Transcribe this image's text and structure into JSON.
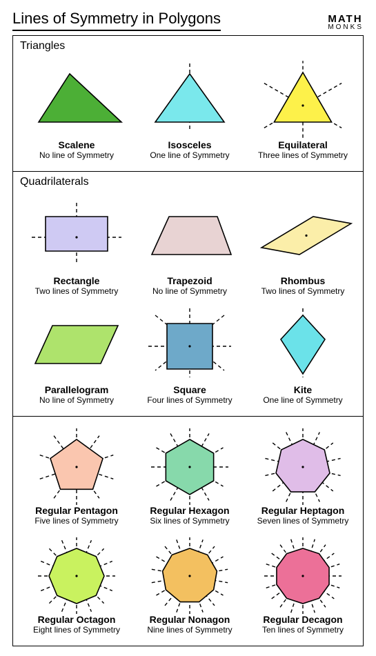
{
  "page_title": "Lines of Symmetry in Polygons",
  "logo": {
    "top": "MATH",
    "bottom": "MONKS"
  },
  "stroke_color": "#000000",
  "dash_pattern": "5 4",
  "sections": [
    {
      "title": "Triangles",
      "rows": [
        [
          {
            "key": "scalene",
            "name": "Scalene",
            "sub": "No line of Symmetry",
            "fill": "#4caf36",
            "shape": "scalene"
          },
          {
            "key": "isosceles",
            "name": "Isosceles",
            "sub": "One line of Symmetry",
            "fill": "#7ae8ec",
            "shape": "isosceles"
          },
          {
            "key": "equilateral",
            "name": "Equilateral",
            "sub": "Three lines of Symmetry",
            "fill": "#fdf14a",
            "shape": "equilateral"
          }
        ]
      ]
    },
    {
      "title": "Quadrilaterals",
      "rows": [
        [
          {
            "key": "rectangle",
            "name": "Rectangle",
            "sub": "Two lines of Symmetry",
            "fill": "#cfcaf3",
            "shape": "rectangle"
          },
          {
            "key": "trapezoid",
            "name": "Trapezoid",
            "sub": "No line of Symmetry",
            "fill": "#e8d3d3",
            "shape": "trapezoid"
          },
          {
            "key": "rhombus",
            "name": "Rhombus",
            "sub": "Two lines of Symmetry",
            "fill": "#fbeea9",
            "shape": "rhombus"
          }
        ],
        [
          {
            "key": "parallelogram",
            "name": "Parallelogram",
            "sub": "No line of Symmetry",
            "fill": "#aee36c",
            "shape": "parallelogram"
          },
          {
            "key": "square",
            "name": "Square",
            "sub": "Four lines of Symmetry",
            "fill": "#6ea9c9",
            "shape": "square"
          },
          {
            "key": "kite",
            "name": "Kite",
            "sub": "One line of Symmetry",
            "fill": "#6be2e9",
            "shape": "kite"
          }
        ]
      ]
    },
    {
      "title": "",
      "rows": [
        [
          {
            "key": "pentagon",
            "name": "Regular Pentagon",
            "sub": "Five lines of Symmetry",
            "fill": "#fac6af",
            "shape": "regular",
            "n": 5
          },
          {
            "key": "hexagon",
            "name": "Regular Hexagon",
            "sub": "Six lines of Symmetry",
            "fill": "#87d9ab",
            "shape": "regular",
            "n": 6
          },
          {
            "key": "heptagon",
            "name": "Regular Heptagon",
            "sub": "Seven lines of Symmetry",
            "fill": "#e0bde8",
            "shape": "regular",
            "n": 7
          }
        ],
        [
          {
            "key": "octagon",
            "name": "Regular Octagon",
            "sub": "Eight lines of Symmetry",
            "fill": "#c9f25f",
            "shape": "regular",
            "n": 8
          },
          {
            "key": "nonagon",
            "name": "Regular Nonagon",
            "sub": "Nine lines of Symmetry",
            "fill": "#f3c060",
            "shape": "regular",
            "n": 9
          },
          {
            "key": "decagon",
            "name": "Regular Decagon",
            "sub": "Ten lines of Symmetry",
            "fill": "#ec7098",
            "shape": "regular",
            "n": 10
          }
        ]
      ]
    }
  ]
}
